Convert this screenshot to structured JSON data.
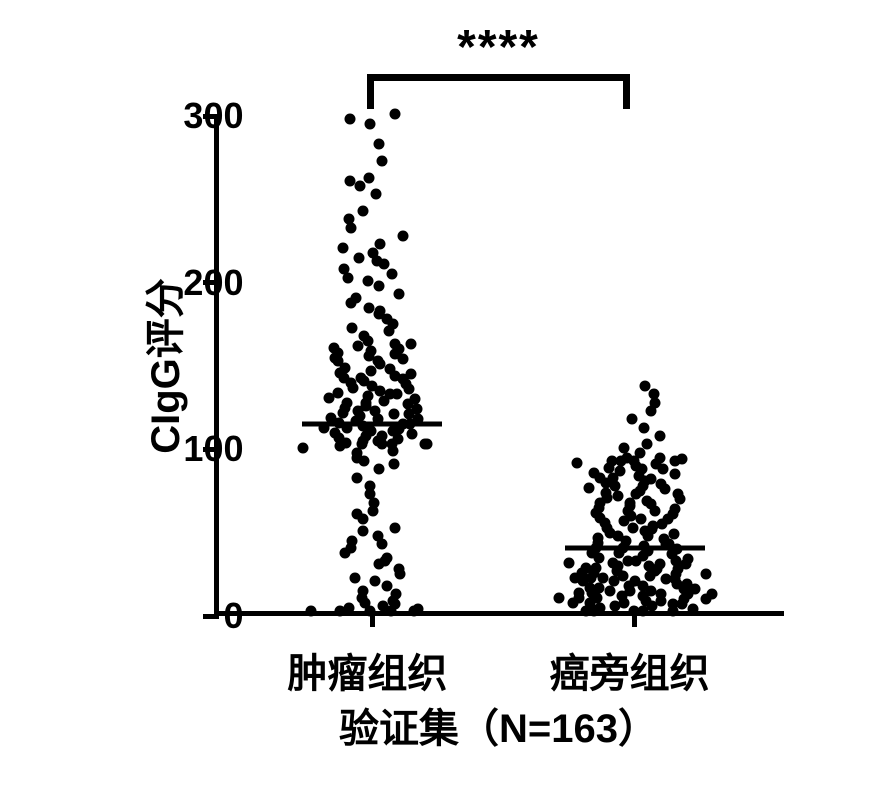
{
  "chart": {
    "type": "scatter-strip",
    "background_color": "#ffffff",
    "point_color": "#000000",
    "axis_color": "#000000",
    "axis_width": 5,
    "point_size": 11,
    "ylabel": "CIgG评分",
    "ylabel_fontsize": 40,
    "ylim": [
      0,
      300
    ],
    "yticks": [
      0,
      100,
      200,
      300
    ],
    "ytick_labels": [
      "0",
      "100",
      "200",
      "300"
    ],
    "ytick_fontsize": 36,
    "categories": [
      "肿瘤组织",
      "癌旁组织"
    ],
    "category_x_positions": [
      0.27,
      0.73
    ],
    "category_fontsize": 40,
    "subtitle": "验证集（N=163）",
    "subtitle_fontsize": 40,
    "significance": {
      "label": "****",
      "from_cat": 0,
      "to_cat": 1,
      "y_position": 310,
      "bracket_height": 28
    },
    "groups": [
      {
        "name": "tumor",
        "median": 112,
        "median_line_width": 140,
        "jitter_width": 0.19,
        "points": [
          0,
          0,
          0,
          0,
          0,
          1,
          2,
          3,
          4,
          5,
          6,
          8,
          10,
          12,
          15,
          18,
          20,
          22,
          25,
          28,
          30,
          32,
          35,
          38,
          40,
          42,
          45,
          48,
          50,
          55,
          58,
          60,
          65,
          70,
          75,
          80,
          85,
          88,
          90,
          92,
          95,
          96,
          98,
          99,
          100,
          100,
          100,
          100,
          100,
          101,
          102,
          102,
          103,
          104,
          105,
          105,
          106,
          107,
          108,
          108,
          109,
          110,
          110,
          111,
          112,
          112,
          113,
          114,
          115,
          115,
          116,
          117,
          118,
          118,
          119,
          120,
          120,
          121,
          122,
          123,
          124,
          125,
          125,
          126,
          127,
          128,
          129,
          130,
          130,
          131,
          132,
          133,
          134,
          135,
          136,
          137,
          138,
          139,
          140,
          140,
          141,
          142,
          143,
          144,
          145,
          146,
          148,
          150,
          150,
          151,
          152,
          153,
          154,
          155,
          156,
          157,
          158,
          159,
          160,
          160,
          162,
          165,
          168,
          170,
          172,
          175,
          178,
          180,
          182,
          185,
          188,
          190,
          195,
          198,
          200,
          202,
          205,
          208,
          210,
          212,
          215,
          218,
          220,
          225,
          230,
          235,
          240,
          250,
          255,
          258,
          260,
          270,
          280,
          292,
          295,
          298
        ]
      },
      {
        "name": "adjacent",
        "median": 38,
        "median_line_width": 140,
        "jitter_width": 0.19,
        "points": [
          0,
          0,
          0,
          0,
          0,
          1,
          2,
          2,
          3,
          3,
          4,
          4,
          5,
          5,
          5,
          6,
          6,
          7,
          7,
          8,
          8,
          8,
          9,
          9,
          10,
          10,
          10,
          11,
          11,
          12,
          12,
          12,
          13,
          13,
          14,
          14,
          15,
          15,
          16,
          16,
          18,
          18,
          18,
          19,
          19,
          20,
          20,
          20,
          21,
          21,
          22,
          22,
          23,
          23,
          24,
          24,
          25,
          25,
          26,
          26,
          27,
          27,
          28,
          28,
          29,
          29,
          30,
          30,
          30,
          31,
          32,
          33,
          34,
          35,
          35,
          36,
          37,
          38,
          38,
          39,
          40,
          40,
          41,
          42,
          43,
          44,
          45,
          45,
          46,
          47,
          48,
          49,
          50,
          50,
          51,
          52,
          53,
          54,
          55,
          55,
          56,
          57,
          58,
          59,
          60,
          60,
          61,
          62,
          63,
          64,
          65,
          65,
          66,
          67,
          68,
          69,
          70,
          70,
          71,
          72,
          73,
          74,
          75,
          75,
          76,
          77,
          78,
          79,
          80,
          80,
          81,
          82,
          83,
          84,
          85,
          85,
          86,
          87,
          88,
          89,
          90,
          90,
          90,
          90,
          91,
          92,
          92,
          95,
          98,
          100,
          105,
          110,
          115,
          120,
          125,
          130,
          135
        ]
      }
    ]
  }
}
